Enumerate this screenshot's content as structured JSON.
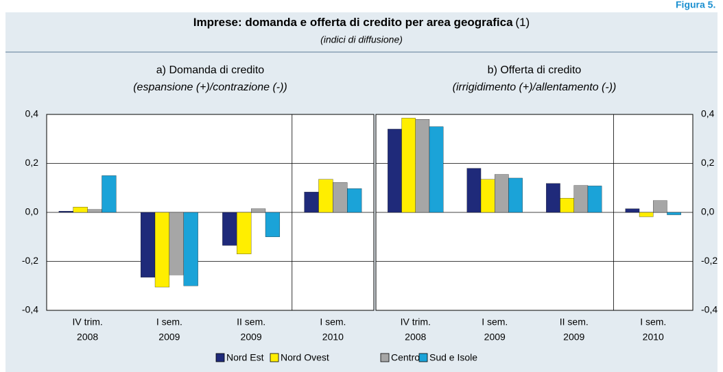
{
  "figure_label": "Figura 5.",
  "title": "Imprese: domanda e offerta di credito per area geografica",
  "title_note": "(1)",
  "subtitle": "(indici di diffusione)",
  "chart_data": [
    {
      "type": "bar",
      "title": "a) Domanda di credito",
      "subtitle": "(espansione (+)/contrazione (-))",
      "categories": [
        [
          "IV trim.",
          "2008"
        ],
        [
          "I sem.",
          "2009"
        ],
        [
          "II sem.",
          "2009"
        ],
        [
          "I sem.",
          "2010"
        ]
      ],
      "series": [
        {
          "name": "Nord Est",
          "color": "#1f2a7a",
          "values": [
            0.005,
            -0.265,
            -0.135,
            0.083
          ]
        },
        {
          "name": "Nord Ovest",
          "color": "#ffee00",
          "values": [
            0.022,
            -0.305,
            -0.17,
            0.135
          ]
        },
        {
          "name": "Centro",
          "color": "#a6a6a6",
          "values": [
            0.012,
            -0.255,
            0.015,
            0.122
          ]
        },
        {
          "name": "Sud e Isole",
          "color": "#1ba3d8",
          "values": [
            0.15,
            -0.3,
            -0.1,
            0.097
          ]
        }
      ],
      "ylim": [
        -0.4,
        0.4
      ],
      "yticks": [
        {
          "value": -0.4,
          "label": "-0,4"
        },
        {
          "value": -0.2,
          "label": "-0,2"
        },
        {
          "value": 0,
          "label": "0,0"
        },
        {
          "value": 0.2,
          "label": "0,2"
        },
        {
          "value": 0.4,
          "label": "0,4"
        }
      ],
      "y_axis_side": "left",
      "grid": true
    },
    {
      "type": "bar",
      "title": "b) Offerta di credito",
      "subtitle": "(irrigidimento (+)/allentamento (-))",
      "categories": [
        [
          "IV trim.",
          "2008"
        ],
        [
          "I sem.",
          "2009"
        ],
        [
          "II sem.",
          "2009"
        ],
        [
          "I sem.",
          "2010"
        ]
      ],
      "series": [
        {
          "name": "Nord Est",
          "color": "#1f2a7a",
          "values": [
            0.34,
            0.18,
            0.118,
            0.015
          ]
        },
        {
          "name": "Nord Ovest",
          "color": "#ffee00",
          "values": [
            0.385,
            0.135,
            0.058,
            -0.018
          ]
        },
        {
          "name": "Centro",
          "color": "#a6a6a6",
          "values": [
            0.38,
            0.155,
            0.11,
            0.048
          ]
        },
        {
          "name": "Sud e Isole",
          "color": "#1ba3d8",
          "values": [
            0.35,
            0.14,
            0.108,
            -0.01
          ]
        }
      ],
      "ylim": [
        -0.4,
        0.4
      ],
      "yticks": [
        {
          "value": -0.4,
          "label": "-0,4"
        },
        {
          "value": -0.2,
          "label": "-0,2"
        },
        {
          "value": 0,
          "label": "0,0"
        },
        {
          "value": 0.2,
          "label": "0,2"
        },
        {
          "value": 0.4,
          "label": "0,4"
        }
      ],
      "y_axis_side": "right",
      "grid": true
    }
  ]
}
